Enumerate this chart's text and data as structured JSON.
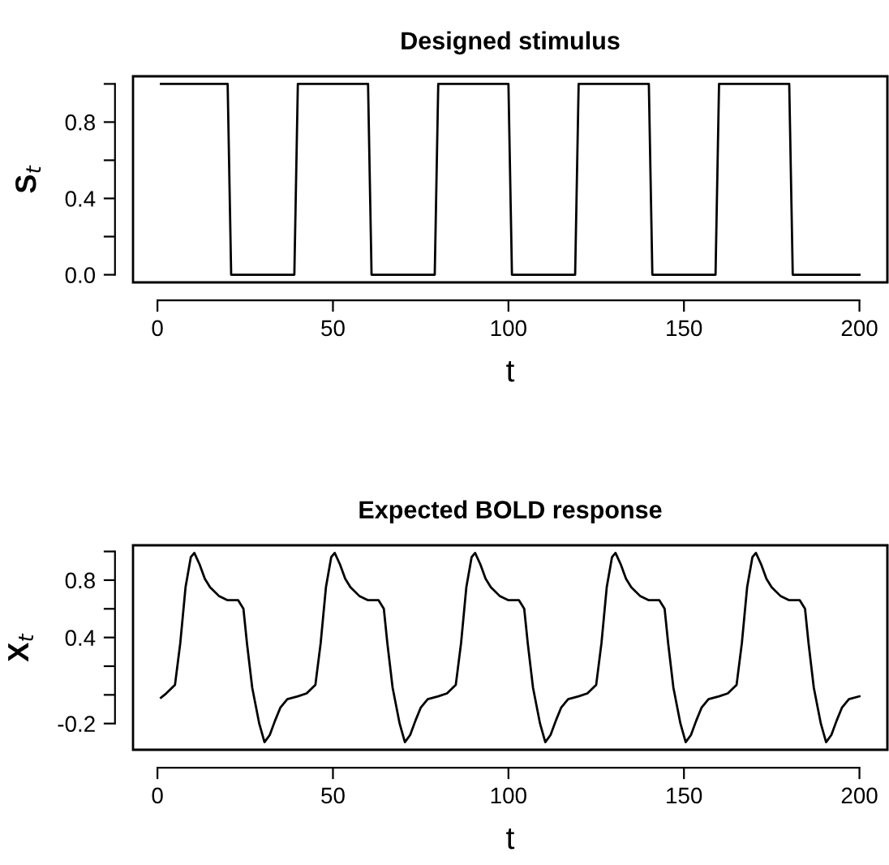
{
  "chart_data": [
    {
      "type": "line",
      "title": "Designed stimulus",
      "xlabel": "t",
      "ylabel": "S$_{t}$",
      "color": "#000000",
      "x": [
        1,
        20,
        21,
        39,
        40,
        60,
        61,
        79,
        80,
        100,
        101,
        119,
        120,
        140,
        141,
        159,
        160,
        180,
        181,
        200
      ],
      "values": [
        1,
        1,
        0,
        0,
        1,
        1,
        0,
        0,
        1,
        1,
        0,
        0,
        1,
        1,
        0,
        0,
        1,
        1,
        0,
        0
      ],
      "xlim": [
        -6.96,
        207.96
      ],
      "ylim": [
        -0.04,
        1.04
      ],
      "xticks": [
        0,
        50,
        100,
        150,
        200
      ],
      "yticks": [
        {
          "value": 0.0,
          "label": "0.0"
        },
        {
          "value": 0.2,
          "label": null
        },
        {
          "value": 0.4,
          "label": "0.4"
        },
        {
          "value": 0.6,
          "label": null
        },
        {
          "value": 0.8,
          "label": "0.8"
        },
        {
          "value": 1.0,
          "label": null
        }
      ]
    },
    {
      "type": "line",
      "title": "Expected BOLD response",
      "xlabel": "t",
      "ylabel": "X$_{t}$",
      "color": "#000000",
      "x": [
        1,
        2.5,
        5,
        6.5,
        8,
        9.5,
        10.5,
        12,
        13.5,
        15,
        17.5,
        20,
        23,
        24.5,
        25.5,
        27,
        29,
        30.5,
        32,
        33.5,
        35,
        37,
        40,
        42.5,
        45,
        46.5,
        48,
        49.5,
        50.5,
        52,
        53.5,
        55,
        57.5,
        60,
        63,
        64.5,
        65.5,
        67,
        69,
        70.5,
        72,
        73.5,
        75,
        77,
        80,
        82.5,
        85,
        86.5,
        88,
        89.5,
        90.5,
        92,
        93.5,
        95,
        97.5,
        100,
        103,
        104.5,
        105.5,
        107,
        109,
        110.5,
        112,
        113.5,
        115,
        117,
        120,
        122.5,
        125,
        126.5,
        128,
        129.5,
        130.5,
        132,
        133.5,
        135,
        137.5,
        140,
        143,
        144.5,
        145.5,
        147,
        149,
        150.5,
        152,
        153.5,
        155,
        157,
        160,
        162.5,
        165,
        166.5,
        168,
        169.5,
        170.5,
        172,
        173.5,
        175,
        177.5,
        180,
        183,
        184.5,
        185.5,
        187,
        189,
        190.5,
        192,
        193.5,
        195,
        197,
        200
      ],
      "values": [
        -0.02,
        0.01,
        0.07,
        0.36,
        0.75,
        0.96,
        0.99,
        0.91,
        0.81,
        0.75,
        0.69,
        0.66,
        0.66,
        0.6,
        0.36,
        0.05,
        -0.2,
        -0.33,
        -0.28,
        -0.18,
        -0.09,
        -0.03,
        -0.01,
        0.01,
        0.07,
        0.36,
        0.75,
        0.96,
        0.99,
        0.91,
        0.81,
        0.75,
        0.69,
        0.66,
        0.66,
        0.6,
        0.36,
        0.05,
        -0.2,
        -0.33,
        -0.28,
        -0.18,
        -0.09,
        -0.03,
        -0.01,
        0.01,
        0.07,
        0.36,
        0.75,
        0.96,
        0.99,
        0.91,
        0.81,
        0.75,
        0.69,
        0.66,
        0.66,
        0.6,
        0.36,
        0.05,
        -0.2,
        -0.33,
        -0.28,
        -0.18,
        -0.09,
        -0.03,
        -0.01,
        0.01,
        0.07,
        0.36,
        0.75,
        0.96,
        0.99,
        0.91,
        0.81,
        0.75,
        0.69,
        0.66,
        0.66,
        0.6,
        0.36,
        0.05,
        -0.2,
        -0.33,
        -0.28,
        -0.18,
        -0.09,
        -0.03,
        -0.01,
        0.01,
        0.07,
        0.36,
        0.75,
        0.96,
        0.99,
        0.91,
        0.81,
        0.75,
        0.69,
        0.66,
        0.66,
        0.6,
        0.36,
        0.05,
        -0.2,
        -0.33,
        -0.28,
        -0.18,
        -0.09,
        -0.03,
        -0.01
      ],
      "xlim": [
        -6.96,
        207.96
      ],
      "ylim": [
        -0.383,
        1.043
      ],
      "xticks": [
        0,
        50,
        100,
        150,
        200
      ],
      "yticks": [
        {
          "value": -0.2,
          "label": "-0.2"
        },
        {
          "value": 0.0,
          "label": null
        },
        {
          "value": 0.2,
          "label": null
        },
        {
          "value": 0.4,
          "label": "0.4"
        },
        {
          "value": 0.6,
          "label": null
        },
        {
          "value": 0.8,
          "label": "0.8"
        },
        {
          "value": 1.0,
          "label": null
        }
      ]
    }
  ]
}
